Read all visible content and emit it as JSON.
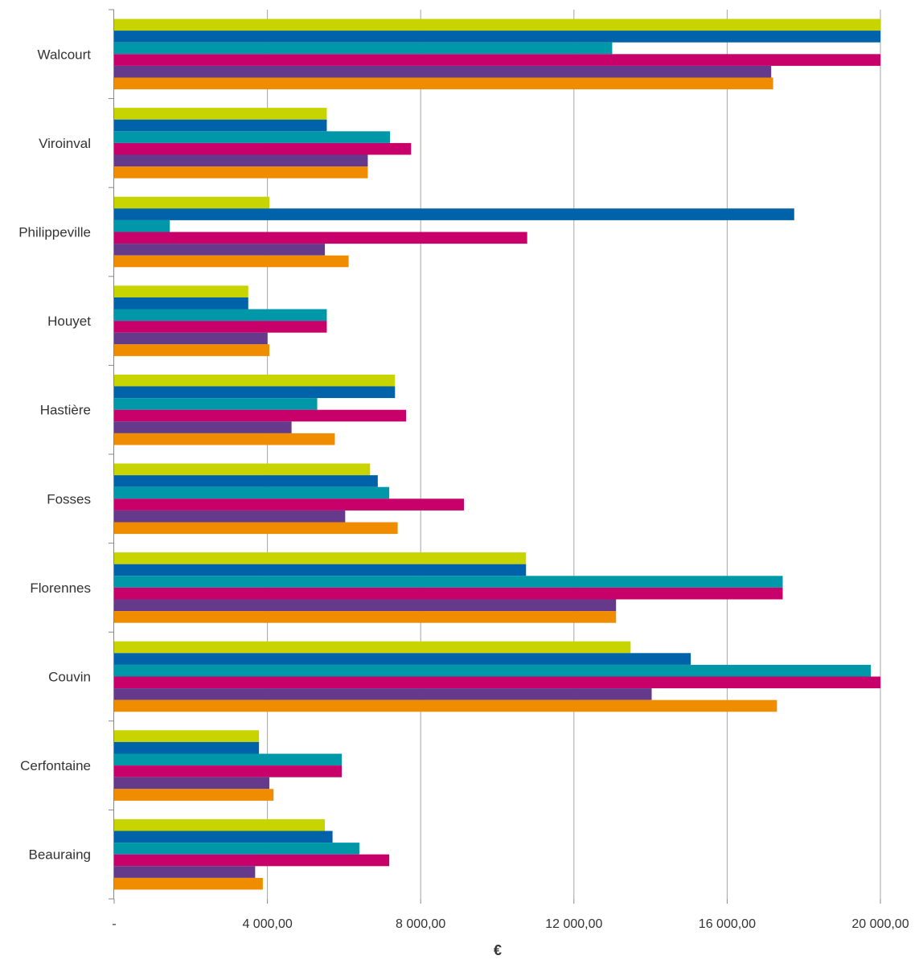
{
  "chart_data": {
    "type": "bar",
    "orientation": "horizontal",
    "xlabel": "€",
    "ylabel": "",
    "xlim": [
      0,
      20000
    ],
    "grid": "vertical",
    "legend": "none",
    "x_ticks": [
      {
        "value": 0,
        "label": "-"
      },
      {
        "value": 4000,
        "label": "4 000,00"
      },
      {
        "value": 8000,
        "label": "8 000,00"
      },
      {
        "value": 12000,
        "label": "12 000,00"
      },
      {
        "value": 16000,
        "label": "16 000,00"
      },
      {
        "value": 20000,
        "label": "20 000,00"
      }
    ],
    "categories": [
      "Walcourt",
      "Viroinval",
      "Philippeville",
      "Houyet",
      "Hastière",
      "Fosses",
      "Florennes",
      "Couvin",
      "Cerfontaine",
      "Beauraing"
    ],
    "series": [
      {
        "color": "#c8d400",
        "values": [
          20000,
          5550,
          4050,
          3500,
          7330,
          6680,
          10750,
          13480,
          3780,
          5500
        ]
      },
      {
        "color": "#0062a8",
        "values": [
          20000,
          5550,
          17750,
          3500,
          7330,
          6880,
          10750,
          15050,
          3780,
          5700
        ]
      },
      {
        "color": "#0098a8",
        "values": [
          13000,
          7200,
          1450,
          5550,
          5300,
          7180,
          17450,
          19750,
          5940,
          6400
        ]
      },
      {
        "color": "#c8006a",
        "values": [
          20000,
          7750,
          10780,
          5550,
          7620,
          9130,
          17450,
          20000,
          5940,
          7180
        ]
      },
      {
        "color": "#653a8a",
        "values": [
          17150,
          6620,
          5500,
          4000,
          4630,
          6030,
          13100,
          14030,
          4050,
          3680
        ]
      },
      {
        "color": "#f08c00",
        "values": [
          17200,
          6620,
          6120,
          4050,
          5760,
          7400,
          13100,
          17300,
          4160,
          3880
        ]
      }
    ]
  }
}
